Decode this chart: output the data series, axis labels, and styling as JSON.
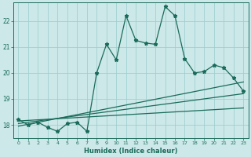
{
  "xlabel": "Humidex (Indice chaleur)",
  "bg_color": "#cce8e8",
  "line_color": "#1a6b5a",
  "grid_color": "#99cccc",
  "xlim": [
    -0.5,
    23.5
  ],
  "ylim": [
    17.5,
    22.7
  ],
  "x_ticks": [
    0,
    1,
    2,
    3,
    4,
    5,
    6,
    7,
    8,
    9,
    10,
    11,
    12,
    13,
    14,
    15,
    16,
    17,
    18,
    19,
    20,
    21,
    22,
    23
  ],
  "y_ticks": [
    18,
    19,
    20,
    21,
    22
  ],
  "main_line_x": [
    0,
    1,
    2,
    3,
    4,
    5,
    6,
    7,
    8,
    9,
    10,
    11,
    12,
    13,
    14,
    15,
    16,
    17,
    18,
    19,
    20,
    21,
    22,
    23
  ],
  "main_line_y": [
    18.2,
    18.0,
    18.1,
    17.9,
    17.75,
    18.05,
    18.1,
    17.75,
    20.0,
    21.1,
    20.5,
    22.2,
    21.25,
    21.15,
    21.1,
    22.55,
    22.2,
    20.55,
    20.0,
    20.05,
    20.3,
    20.2,
    19.8,
    19.3
  ],
  "trend1_x": [
    0,
    23
  ],
  "trend1_y": [
    18.15,
    18.65
  ],
  "trend2_x": [
    0,
    23
  ],
  "trend2_y": [
    18.05,
    19.2
  ],
  "trend3_x": [
    0,
    23
  ],
  "trend3_y": [
    17.95,
    19.65
  ]
}
